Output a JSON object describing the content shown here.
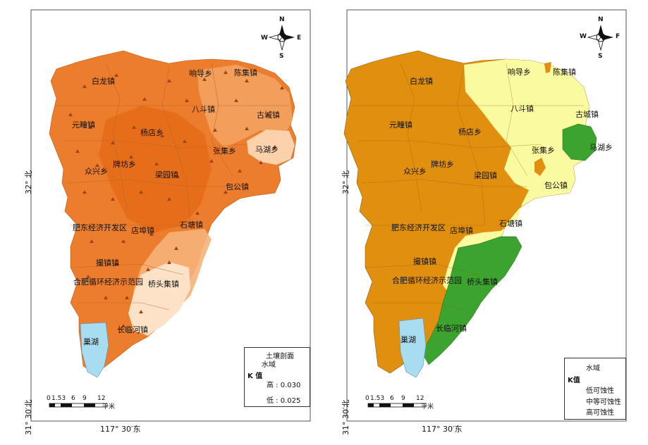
{
  "left_map": {
    "towns": [
      "白龙镇",
      "响导乡",
      "陈集镇",
      "八斗镇",
      "古城镇",
      "元疃镇",
      "杨店乡",
      "马湖乡",
      "张集乡",
      "牌坊乡",
      "众兴乡",
      "梁园镇",
      "包公镇",
      "石塘镇",
      "肥东经济开发区",
      "店埠镇",
      "撮镇镇",
      "合肥循环经济示范园",
      "桥头集镇",
      "长临河镇",
      "巢湖"
    ],
    "legend": {
      "soil_profile": "土壤剖面",
      "water": "水域",
      "k_title": "K 值",
      "high": "高 : 0.030",
      "low": "低 : 0.025"
    },
    "scale": {
      "ticks": [
        "0",
        "1.53",
        "6",
        "9",
        "12"
      ],
      "unit": "千米"
    },
    "coords": {
      "lon": "117° 30′东",
      "lat_top": "32° 北",
      "lat_bottom": "31° 30′北"
    },
    "north": {
      "n": "N",
      "s": "S",
      "e": "E",
      "w": "W"
    }
  },
  "right_map": {
    "towns": [
      "白龙镇",
      "响导乡",
      "陈集镇",
      "八斗镇",
      "古城镇",
      "元疃镇",
      "杨店乡",
      "马湖乡",
      "张集乡",
      "牌坊乡",
      "众兴乡",
      "梁园镇",
      "包公镇",
      "石塘镇",
      "肥东经济开发区",
      "店埠镇",
      "撮镇镇",
      "合肥循环经济示范园",
      "桥头集镇",
      "长临河镇",
      "巢湖"
    ],
    "legend": {
      "water": "水域",
      "k_title": "K值",
      "low": "低可蚀性",
      "medium": "中等可蚀性",
      "high": "高可蚀性"
    },
    "scale": {
      "ticks": [
        "0",
        "1.53",
        "6",
        "9",
        "12"
      ],
      "unit": "千米"
    },
    "coords": {
      "lon": "117° 30′东",
      "lat_top": "32° 北",
      "lat_bottom": "31° 30′北"
    },
    "north": {
      "n": "N",
      "s": "S",
      "e": "F",
      "w": "W"
    }
  },
  "colors": {
    "k_high": "#ea7a2a",
    "k_low": "#fde6cf",
    "water": "#a8dcf0",
    "class_low": "#3ba32e",
    "class_medium": "#fafaa0",
    "class_high": "#e0900e"
  }
}
